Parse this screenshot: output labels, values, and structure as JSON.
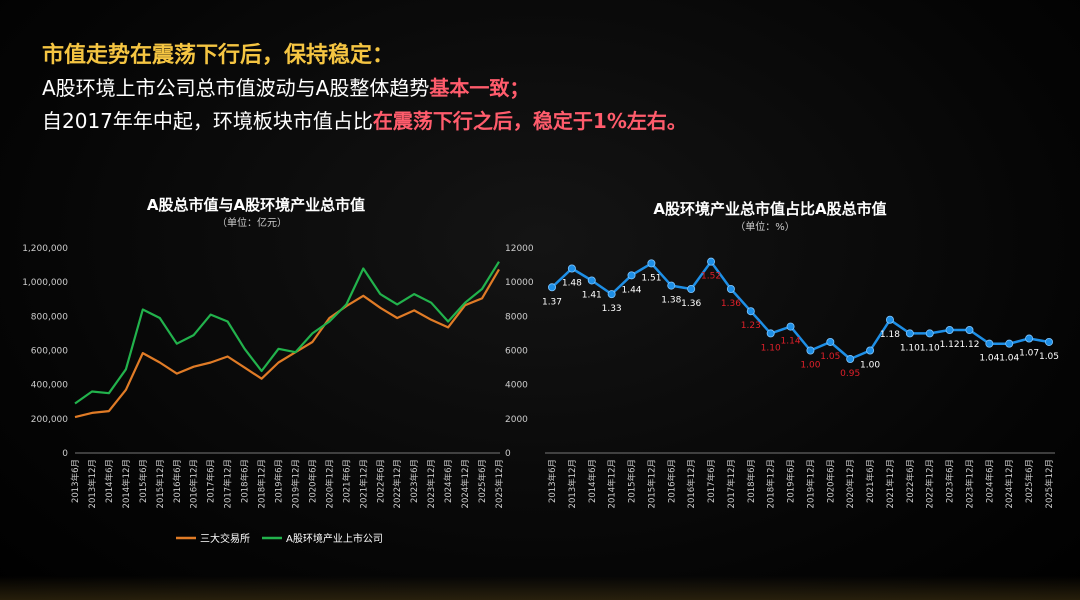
{
  "header": {
    "title": "市值走势在震荡下行后，保持稳定：",
    "line1_a": "A股环境上市公司总市值波动与A股整体趋势",
    "line1_b": "基本一致；",
    "line2_a": "自2017年年中起，环境板块市值占比",
    "line2_b": "在震荡下行之后，稳定于1%左右。"
  },
  "chart_data": [
    {
      "type": "line",
      "title": "A股总市值与A股环境产业总市值",
      "subtitle": "（单位：亿元）",
      "categories": [
        "2013年6月",
        "2013年12月",
        "2014年6月",
        "2014年12月",
        "2015年6月",
        "2015年12月",
        "2016年6月",
        "2016年12月",
        "2017年6月",
        "2017年12月",
        "2018年6月",
        "2018年12月",
        "2019年6月",
        "2019年12月",
        "2020年6月",
        "2020年12月",
        "2021年6月",
        "2021年12月",
        "2022年6月",
        "2022年12月",
        "2023年6月",
        "2023年12月",
        "2024年6月",
        "2024年12月",
        "2025年6月",
        "2025年12月"
      ],
      "y_left": {
        "ticks": [
          "0",
          "200,000",
          "400,000",
          "600,000",
          "800,000",
          "1,000,000",
          "1,200,000"
        ],
        "ylim": [
          0,
          1200000
        ]
      },
      "y_right": {
        "ticks": [
          "0",
          "2000",
          "4000",
          "6000",
          "8000",
          "10000",
          "12000"
        ],
        "ylim": [
          0,
          12000
        ]
      },
      "series": [
        {
          "name": "三大交易所",
          "axis": "left",
          "color": "#e07b26",
          "values": [
            210000,
            235000,
            245000,
            370000,
            585000,
            530000,
            465000,
            505000,
            530000,
            565000,
            500000,
            435000,
            530000,
            590000,
            650000,
            790000,
            860000,
            920000,
            850000,
            790000,
            835000,
            780000,
            735000,
            865000,
            905000,
            1075000
          ]
        },
        {
          "name": "A股环境产业上市公司",
          "axis": "right",
          "color": "#22b24c",
          "values": [
            2900,
            3600,
            3500,
            4900,
            8400,
            7900,
            6400,
            6900,
            8100,
            7700,
            6100,
            4800,
            6100,
            5900,
            7000,
            7700,
            8700,
            10800,
            9300,
            8700,
            9300,
            8800,
            7700,
            8800,
            9600,
            11200
          ]
        }
      ]
    },
    {
      "type": "line",
      "title": "A股环境产业总市值占比A股总市值",
      "subtitle": "（单位：%）",
      "categories": [
        "2013年6月",
        "2013年12月",
        "2014年6月",
        "2014年12月",
        "2015年6月",
        "2015年12月",
        "2016年6月",
        "2016年12月",
        "2017年6月",
        "2017年12月",
        "2018年6月",
        "2018年12月",
        "2019年6月",
        "2019年12月",
        "2020年6月",
        "2020年12月",
        "2021年6月",
        "2021年12月",
        "2022年6月",
        "2022年12月",
        "2023年6月",
        "2023年12月",
        "2024年6月",
        "2024年12月",
        "2025年6月",
        "2025年12月"
      ],
      "series": [
        {
          "name": "",
          "color": "#1e8fe6",
          "values": [
            1.37,
            1.48,
            1.41,
            1.33,
            1.44,
            1.51,
            1.38,
            1.36,
            1.52,
            1.36,
            1.23,
            1.1,
            1.14,
            1.0,
            1.05,
            0.95,
            1.0,
            1.18,
            1.1,
            1.1,
            1.12,
            1.12,
            1.04,
            1.04,
            1.07,
            1.05
          ]
        }
      ],
      "data_labels": [
        "1.37",
        "1.48",
        "1.41",
        "1.33",
        "1.44",
        "1.51",
        "1.38",
        "1.36",
        "1.52",
        "1.36",
        "1.23",
        "1.10",
        "1.14",
        "1.00",
        "1.05",
        "0.95",
        "1.00",
        "1.18",
        "1.10",
        "1.10",
        "1.12",
        "1.12",
        "1.04",
        "1.04",
        "1.07",
        "1.05"
      ],
      "label_colors": [
        "#ffffff",
        "#ffffff",
        "#ffffff",
        "#ffffff",
        "#ffffff",
        "#ffffff",
        "#ffffff",
        "#ffffff",
        "#e0202a",
        "#e0202a",
        "#e0202a",
        "#e0202a",
        "#e0202a",
        "#e0202a",
        "#e0202a",
        "#e0202a",
        "#ffffff",
        "#ffffff",
        "#ffffff",
        "#ffffff",
        "#ffffff",
        "#ffffff",
        "#ffffff",
        "#ffffff",
        "#ffffff",
        "#ffffff"
      ],
      "ylim": [
        0.4,
        1.6
      ]
    }
  ]
}
